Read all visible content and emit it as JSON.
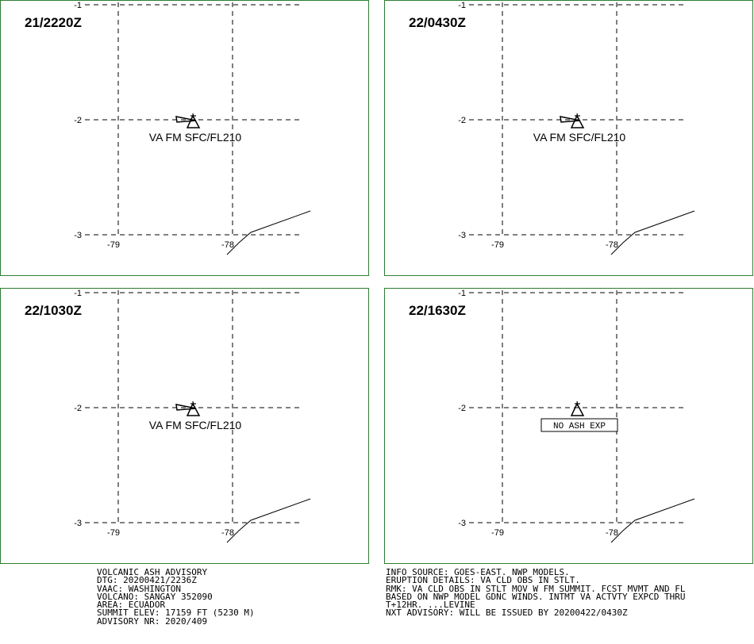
{
  "panels": [
    {
      "time": "21/2220Z",
      "label": "VA FM SFC/FL210",
      "no_ash": false
    },
    {
      "time": "22/0430Z",
      "label": "VA FM SFC/FL210",
      "no_ash": false
    },
    {
      "time": "22/1030Z",
      "label": "VA FM SFC/FL210",
      "no_ash": false
    },
    {
      "time": "22/1630Z",
      "label": "NO ASH EXP",
      "no_ash": true
    }
  ],
  "grid": {
    "lat_labels": [
      "-1",
      "-2",
      "-3"
    ],
    "lon_labels": [
      "-79",
      "-78"
    ]
  },
  "advisory_left": [
    "VOLCANIC ASH ADVISORY",
    "DTG: 20200421/2236Z",
    "VAAC: WASHINGTON",
    "VOLCANO: SANGAY 352090",
    "AREA: ECUADOR",
    "SUMMIT ELEV: 17159 FT (5230 M)",
    "ADVISORY NR: 2020/409"
  ],
  "advisory_right": [
    "INFO SOURCE: GOES-EAST. NWP MODELS.",
    "ERUPTION DETAILS: VA CLD OBS IN STLT.",
    "RMK: VA CLD OBS IN STLT MOV W FM SUMMIT. FCST MVMT AND FL",
    "BASED ON NWP MODEL GDNC WINDS. INTMT VA ACTVTY EXPCD THRU",
    "T+12HR. ...LEVINE",
    "NXT ADVISORY: WILL BE ISSUED BY 20200422/0430Z"
  ],
  "colors": {
    "panel_border": "#2e7d32",
    "grid": "#000000"
  }
}
